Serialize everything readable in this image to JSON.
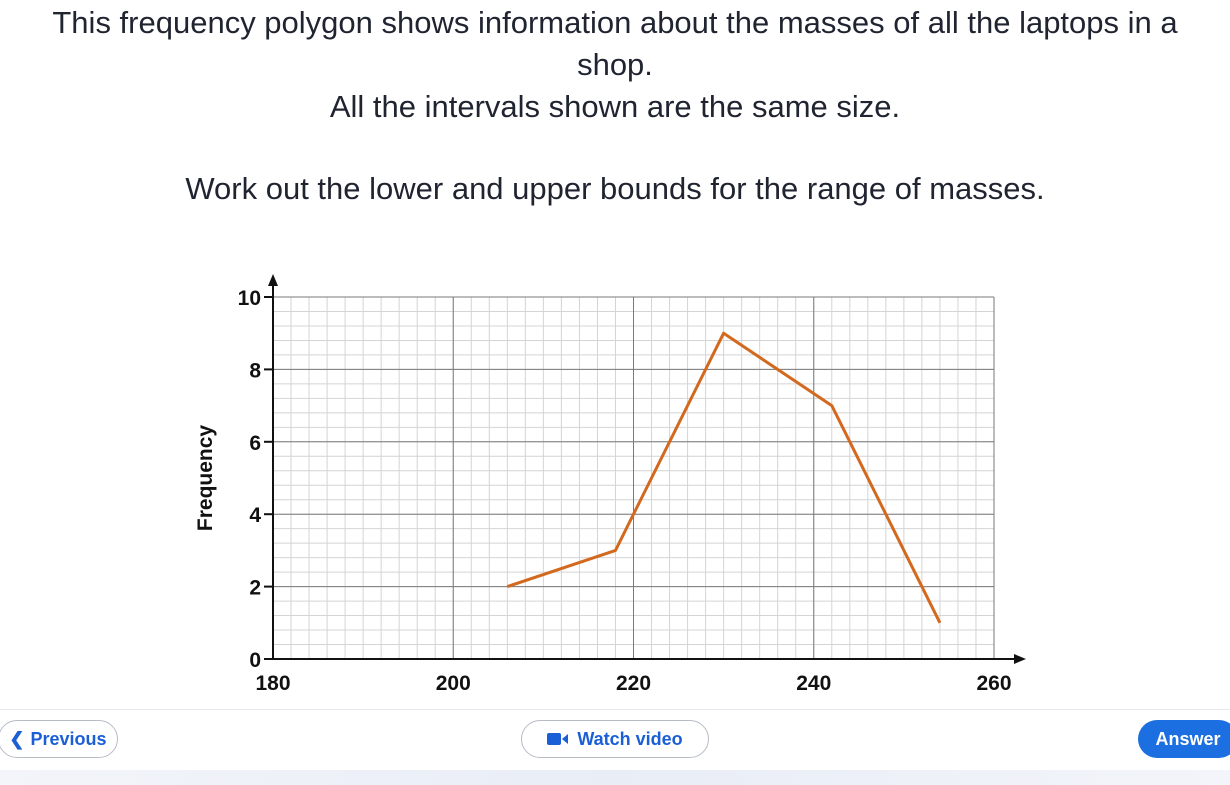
{
  "question": {
    "intro": "This frequency polygon shows information about the masses of all the laptops in a shop.",
    "note": "All the intervals shown are the same size.",
    "task": "Work out the lower and upper bounds for the range of masses."
  },
  "chart_data": {
    "type": "line",
    "x": [
      206,
      218,
      230,
      242,
      254
    ],
    "values": [
      2,
      3,
      9,
      7,
      1
    ],
    "color": "#d2691e",
    "xlim": [
      180,
      260
    ],
    "ylim": [
      0,
      10
    ],
    "xticks": [
      180,
      200,
      220,
      240,
      260
    ],
    "yticks": [
      0,
      2,
      4,
      6,
      8,
      10
    ],
    "y_label": "Frequency",
    "grid": true
  },
  "buttons": {
    "previous": "Previous",
    "watch_video": "Watch video",
    "answer": "Answer"
  }
}
